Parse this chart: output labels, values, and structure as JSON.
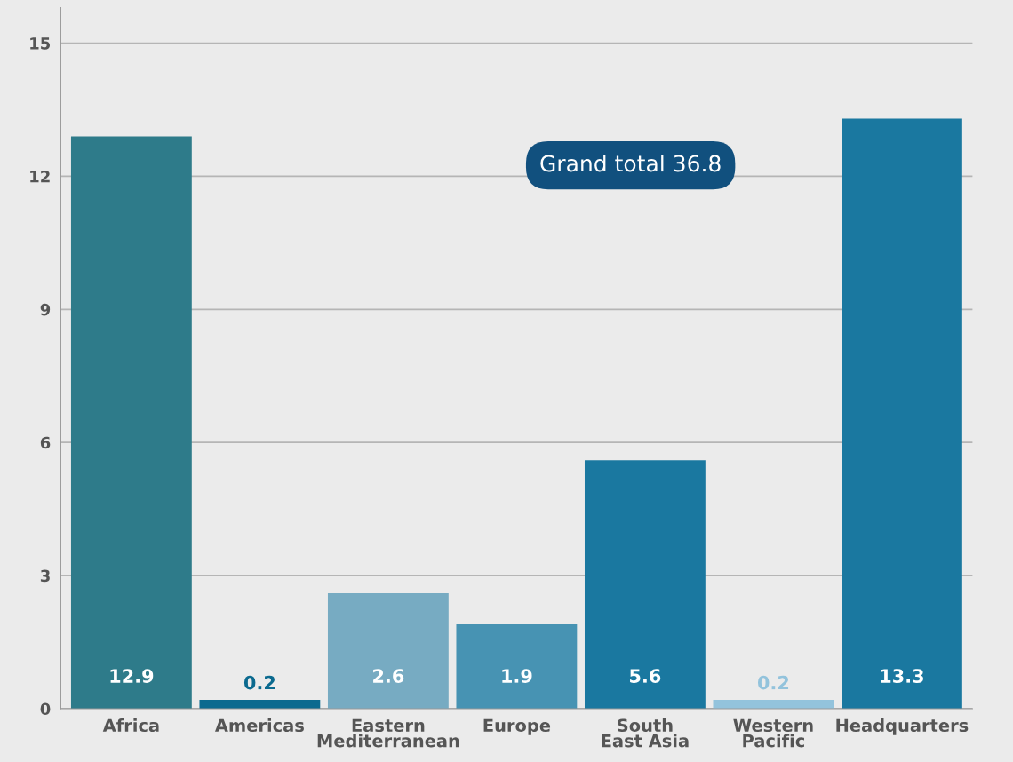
{
  "chart_data": {
    "type": "bar",
    "categories": [
      "Africa",
      "Americas",
      "Eastern\nMediterranean",
      "Europe",
      "South\nEast Asia",
      "Western\nPacific",
      "Headquarters"
    ],
    "values": [
      12.9,
      0.2,
      2.6,
      1.9,
      5.6,
      0.2,
      13.3
    ],
    "colors": [
      "#2e7b8a",
      "#0b6a8f",
      "#77abc2",
      "#4793b3",
      "#1a78a0",
      "#93c3dc",
      "#1a78a0"
    ],
    "ylim": [
      0,
      15.8
    ],
    "yticks": [
      0,
      3,
      6,
      9,
      12,
      15
    ],
    "grid": "y",
    "data_labels": true,
    "annotations": [
      "Grand total 36.8"
    ]
  }
}
